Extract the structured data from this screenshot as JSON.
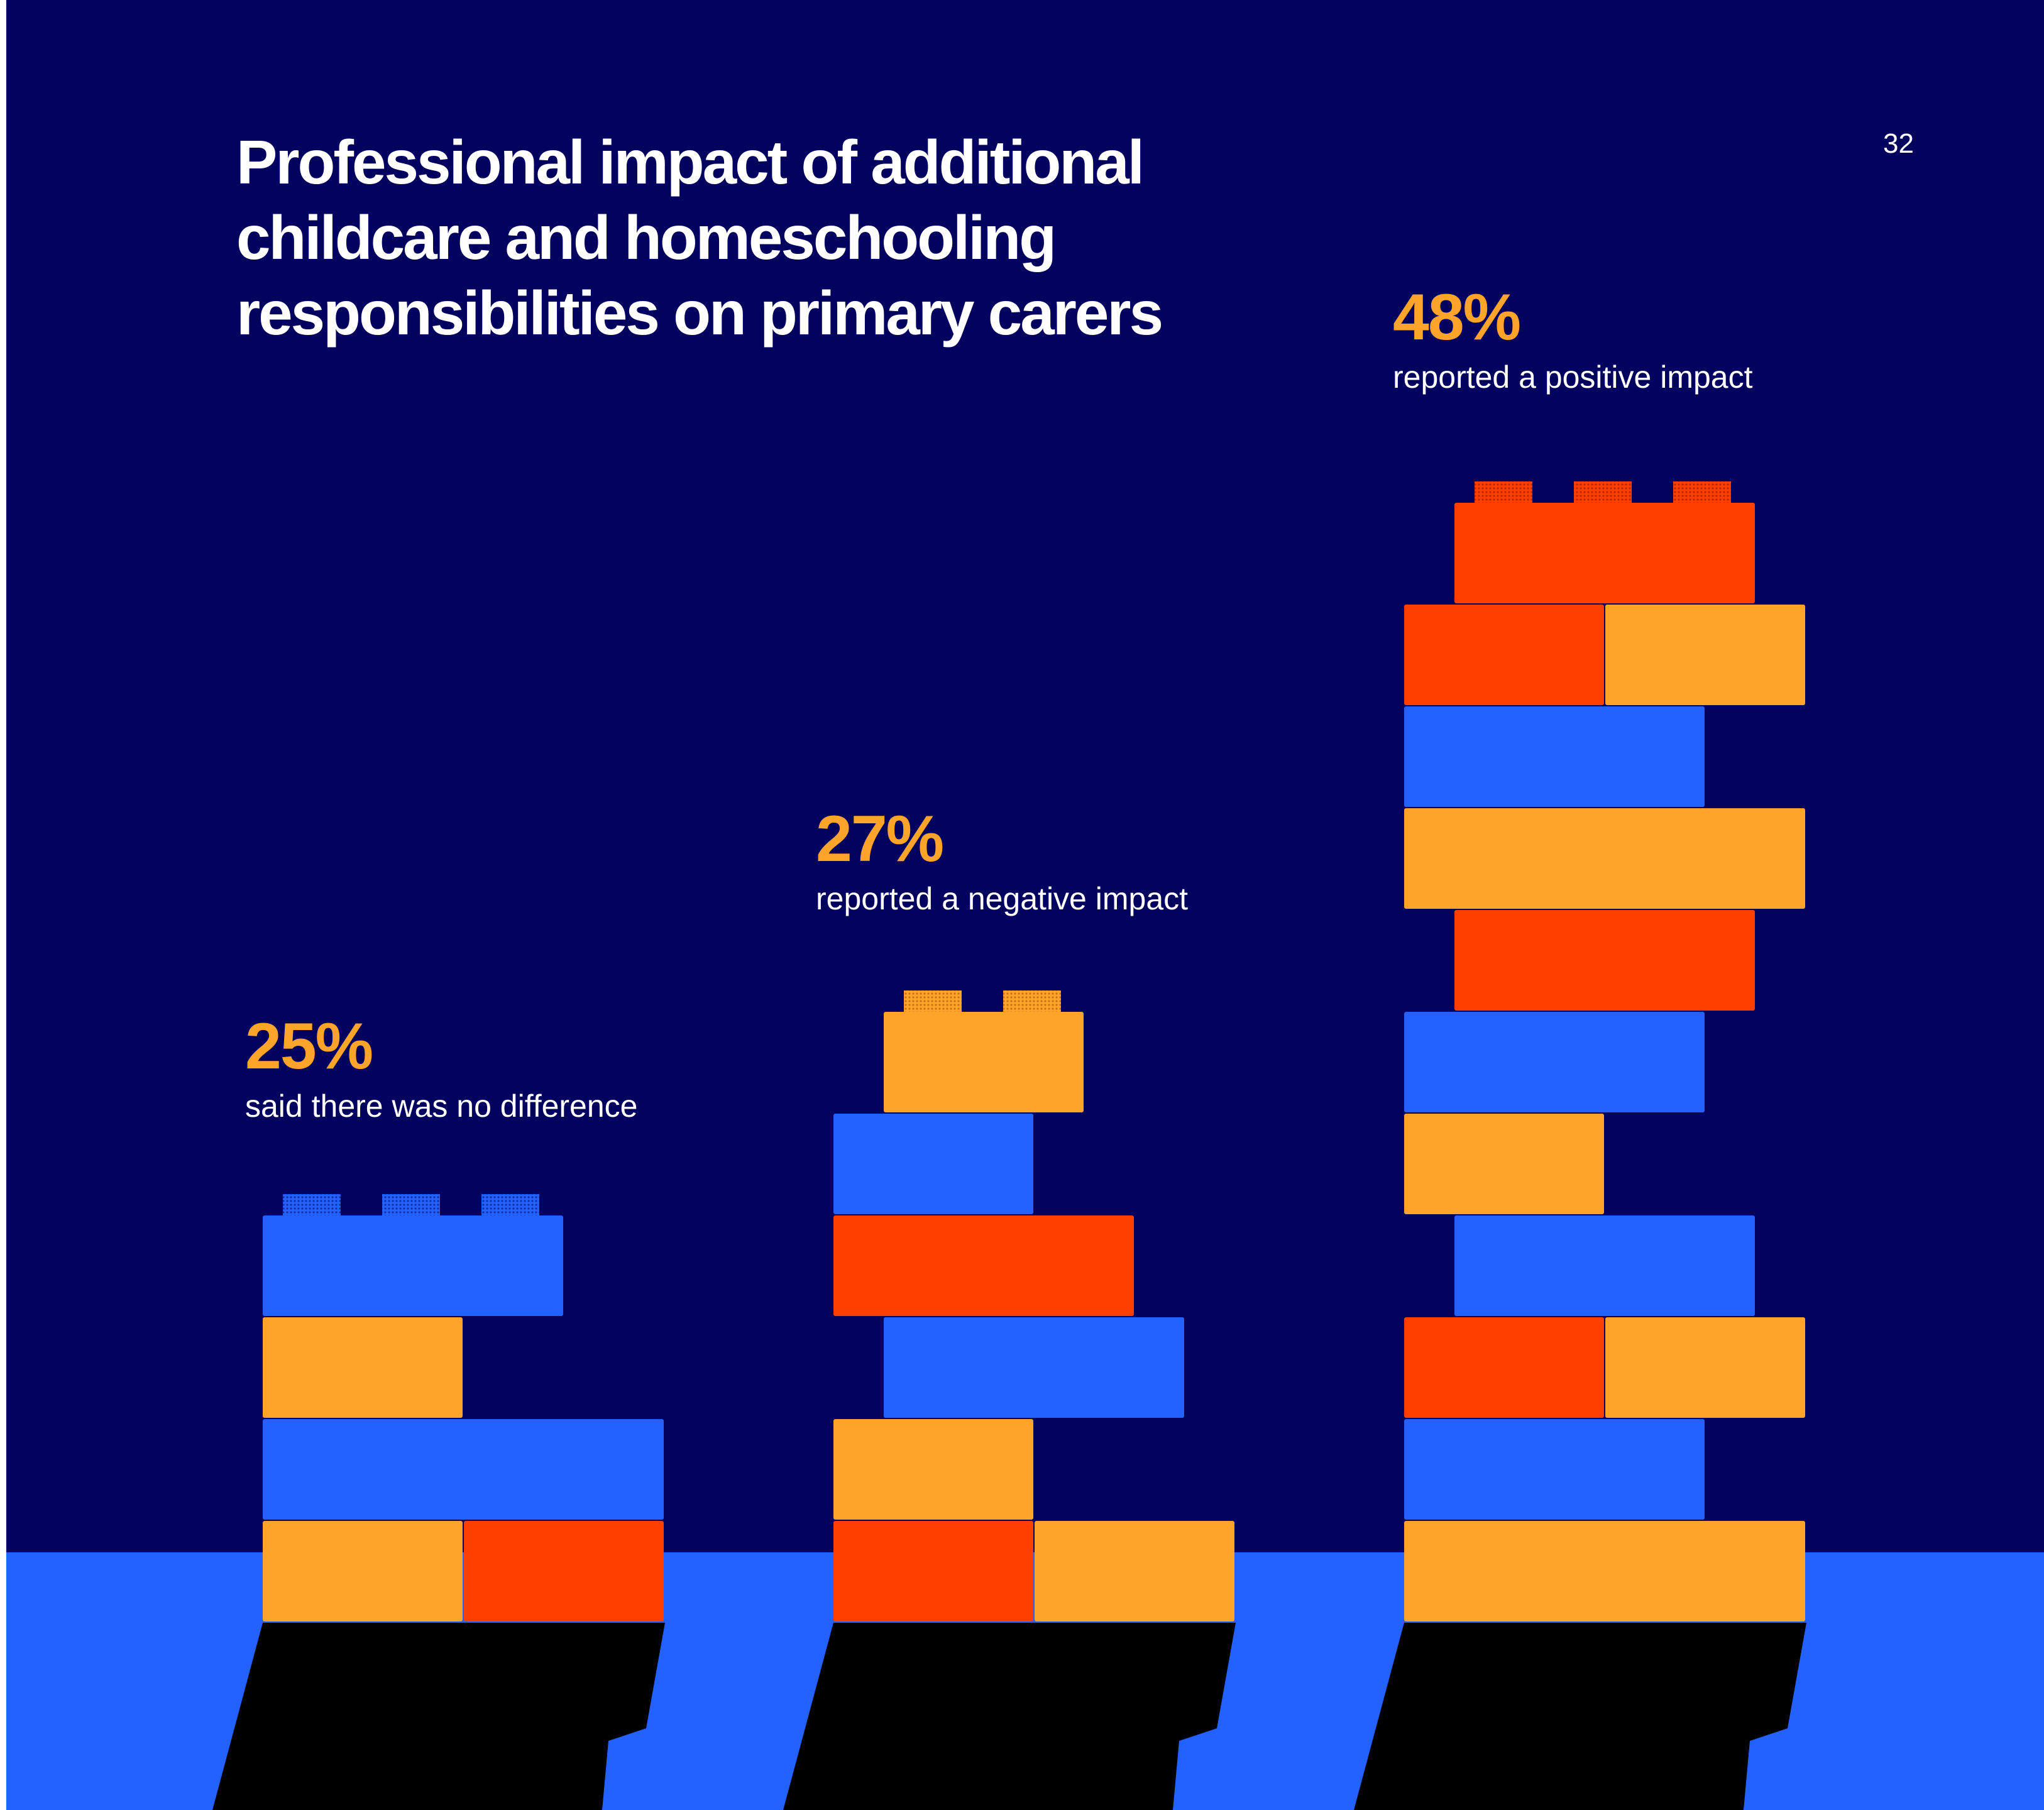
{
  "title_lines": [
    "Professional impact of additional",
    "childcare and homeschooling",
    "responsibilities on primary carers"
  ],
  "page_number": "32",
  "colors": {
    "background": "#03035f",
    "floor": "#2462ff",
    "shadow": "#000000",
    "blue": "#2462ff",
    "orange": "#ffa42a",
    "red": "#ff3f00",
    "accent_text": "#ffa42a"
  },
  "chart_data": {
    "type": "bar",
    "categories": [
      "said there was no difference",
      "reported a negative impact",
      "reported a positive impact"
    ],
    "values": [
      25,
      27,
      48
    ],
    "value_labels": [
      "25%",
      "27%",
      "48%"
    ],
    "unit": "%",
    "ylim": [
      0,
      50
    ],
    "grid": false,
    "legend": "none"
  }
}
